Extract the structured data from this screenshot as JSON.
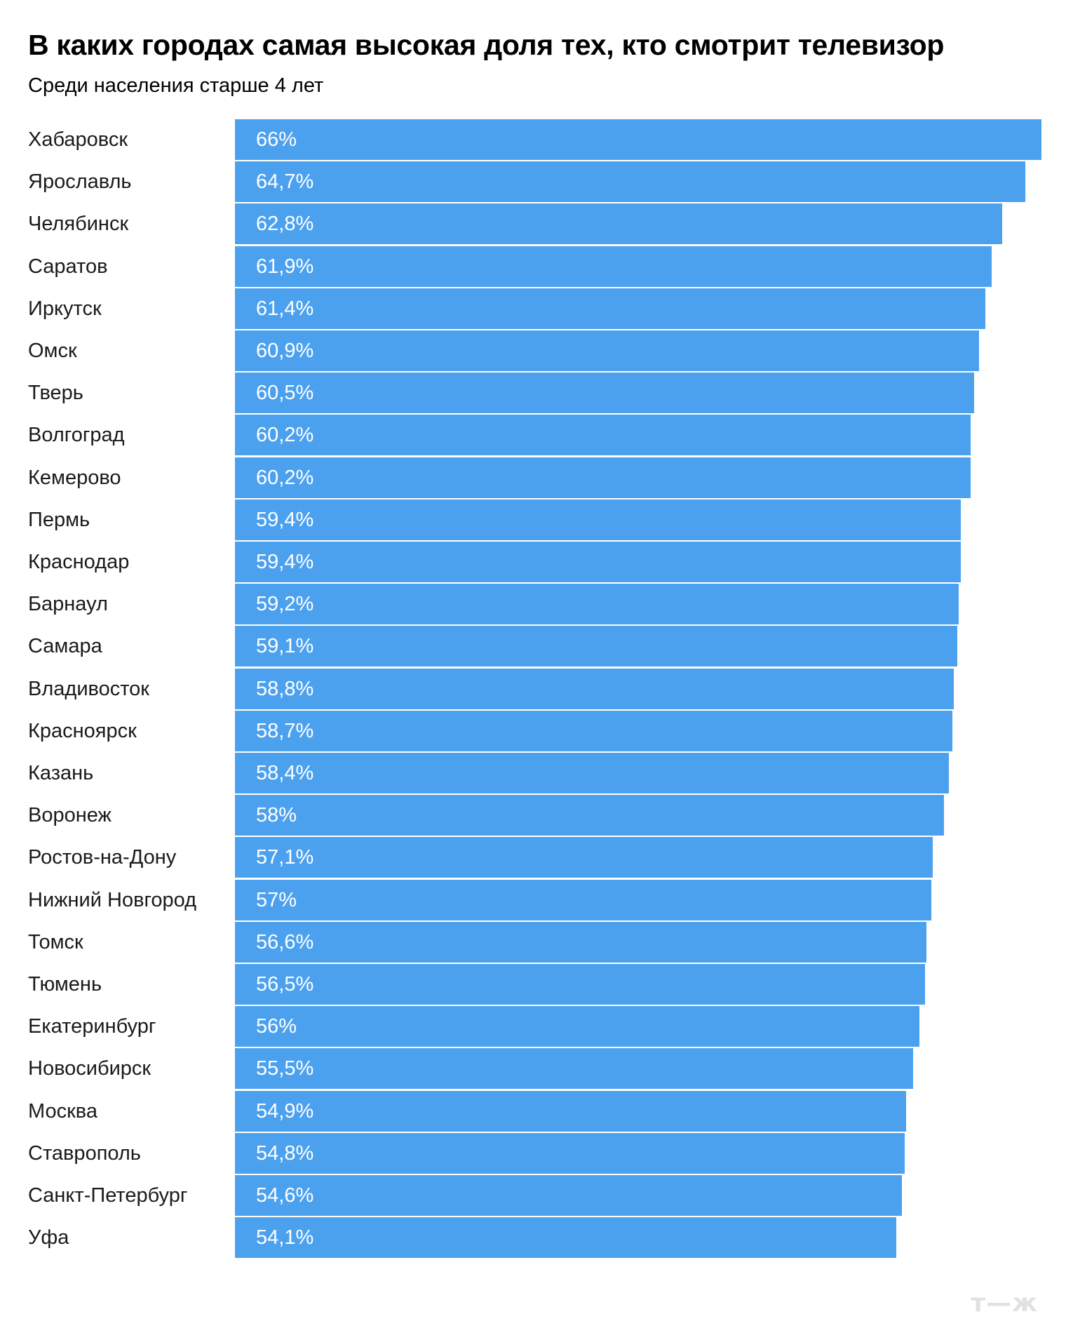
{
  "header": {
    "title": "В каких городах самая высокая доля тех, кто смотрит телевизор",
    "subtitle": "Среди населения старше 4 лет"
  },
  "logo": {
    "text": "т—ж"
  },
  "colors": {
    "bar": "#4ca1ef",
    "value_label": "#ffffff",
    "logo": "#e1e1e1"
  },
  "chart_data": {
    "type": "bar",
    "orientation": "horizontal",
    "title": "В каких городах самая высокая доля тех, кто смотрит телевизор",
    "subtitle": "Среди населения старше 4 лет",
    "xlabel": "",
    "ylabel": "",
    "grid": false,
    "legend": "none",
    "unit": "%",
    "xlim": [
      0,
      66
    ],
    "categories": [
      "Хабаровск",
      "Ярославль",
      "Челябинск",
      "Саратов",
      "Иркутск",
      "Омск",
      "Тверь",
      "Волгоград",
      "Кемерово",
      "Пермь",
      "Краснодар",
      "Барнаул",
      "Самара",
      "Владивосток",
      "Красноярск",
      "Казань",
      "Воронеж",
      "Ростов-на-Дону",
      "Нижний Новгород",
      "Томск",
      "Тюмень",
      "Екатеринбург",
      "Новосибирск",
      "Москва",
      "Ставрополь",
      "Санкт-Петербург",
      "Уфа"
    ],
    "values": [
      66,
      64.7,
      62.8,
      61.9,
      61.4,
      60.9,
      60.5,
      60.2,
      60.2,
      59.4,
      59.4,
      59.2,
      59.1,
      58.8,
      58.7,
      58.4,
      58,
      57.1,
      57,
      56.6,
      56.5,
      56,
      55.5,
      54.9,
      54.8,
      54.6,
      54.1
    ],
    "value_labels": [
      "66%",
      "64,7%",
      "62,8%",
      "61,9%",
      "61,4%",
      "60,9%",
      "60,5%",
      "60,2%",
      "60,2%",
      "59,4%",
      "59,4%",
      "59,2%",
      "59,1%",
      "58,8%",
      "58,7%",
      "58,4%",
      "58%",
      "57,1%",
      "57%",
      "56,6%",
      "56,5%",
      "56%",
      "55,5%",
      "54,9%",
      "54,8%",
      "54,6%",
      "54,1%"
    ]
  }
}
